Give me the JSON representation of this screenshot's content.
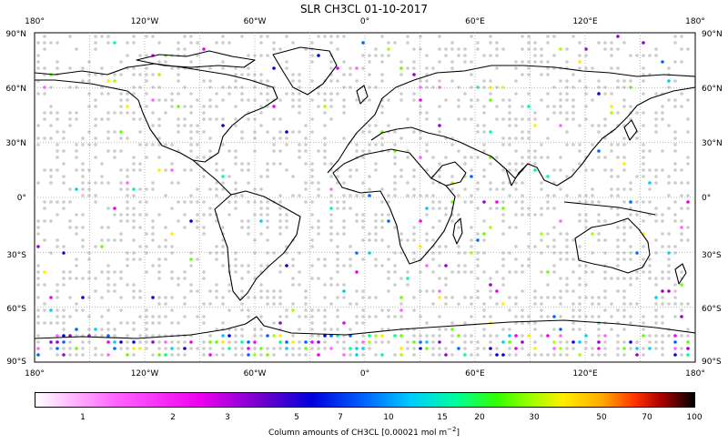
{
  "title": "SLR CH3CL 01-10-2017",
  "lon_ticks": [
    "180°",
    "120°W",
    "60°W",
    "0°",
    "60°E",
    "120°E",
    "180°"
  ],
  "lat_ticks": [
    "90°N",
    "60°N",
    "30°N",
    "0°",
    "30°S",
    "60°S",
    "90°S"
  ],
  "colorbar": {
    "labels": [
      "1",
      "2",
      "3",
      "5",
      "7",
      "10",
      "15",
      "20",
      "30",
      "50",
      "70",
      "100"
    ],
    "title_main": "Column amounts of CH3CL [0.00021 mol m",
    "title_exp": "−2",
    "title_end": "]"
  },
  "colors": {
    "no_data": "#cccccc",
    "coastline": "#000000",
    "graticule": "#aaaaaa"
  }
}
